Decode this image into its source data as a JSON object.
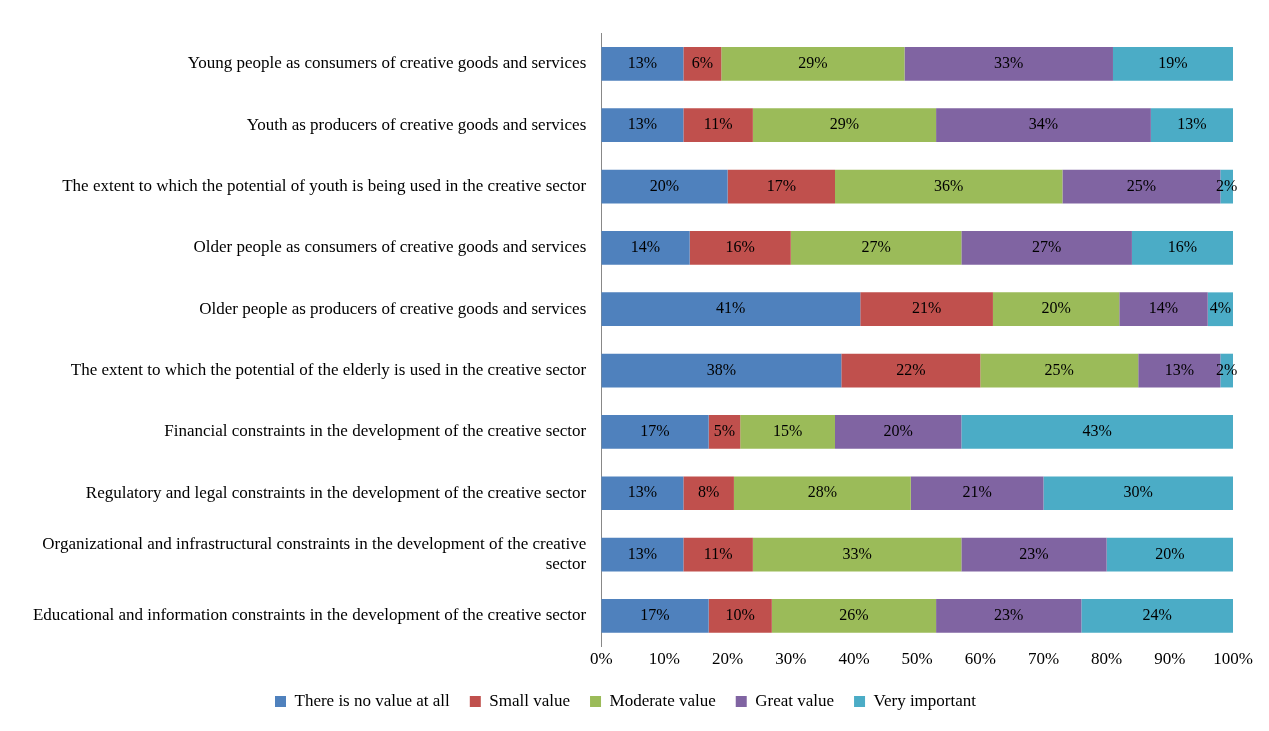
{
  "chart_data": {
    "type": "bar",
    "orientation": "horizontal",
    "stacked": true,
    "grid": false,
    "legend": "bottom",
    "categories": [
      "Young people as consumers of creative goods and services",
      "Youth as producers of creative goods and services",
      "The extent to which the potential of youth is being used in the creative sector",
      "Older people as consumers of creative goods and services",
      "Older people as producers of creative goods and services",
      "The extent to which the potential of the elderly is used in the creative sector",
      "Financial constraints in the development of the creative sector",
      "Regulatory and legal constraints in the development of the creative sector",
      "Organizational and infrastructural constraints in the development of the creative sector",
      "Educational and information constraints in the development of the creative sector"
    ],
    "xlim": [
      0,
      100
    ],
    "xticks": [
      {
        "value": 0,
        "label": "0%"
      },
      {
        "value": 10,
        "label": "10%"
      },
      {
        "value": 20,
        "label": "20%"
      },
      {
        "value": 30,
        "label": "30%"
      },
      {
        "value": 40,
        "label": "40%"
      },
      {
        "value": 50,
        "label": "50%"
      },
      {
        "value": 60,
        "label": "60%"
      },
      {
        "value": 70,
        "label": "70%"
      },
      {
        "value": 80,
        "label": "80%"
      },
      {
        "value": 90,
        "label": "90%"
      },
      {
        "value": 100,
        "label": "100%"
      }
    ],
    "series": [
      {
        "name": "There is no value at all",
        "color": "#4f81bd",
        "values": [
          13,
          13,
          20,
          14,
          41,
          38,
          17,
          13,
          13,
          17
        ],
        "value_labels": [
          "13%",
          "13%",
          "20%",
          "14%",
          "41%",
          "38%",
          "17%",
          "13%",
          "13%",
          "17%"
        ]
      },
      {
        "name": "Small value",
        "color": "#c0504d",
        "values": [
          6,
          11,
          17,
          16,
          21,
          22,
          5,
          8,
          11,
          10
        ],
        "value_labels": [
          "6%",
          "11%",
          "17%",
          "16%",
          "21%",
          "22%",
          "5%",
          "8%",
          "11%",
          "10%"
        ]
      },
      {
        "name": "Moderate value",
        "color": "#9bbb59",
        "values": [
          29,
          29,
          36,
          27,
          20,
          25,
          15,
          28,
          33,
          26
        ],
        "value_labels": [
          "29%",
          "29%",
          "36%",
          "27%",
          "20%",
          "25%",
          "15%",
          "28%",
          "33%",
          "26%"
        ]
      },
      {
        "name": "Great value",
        "color": "#8064a2",
        "values": [
          33,
          34,
          25,
          27,
          14,
          13,
          20,
          21,
          23,
          23
        ],
        "value_labels": [
          "33%",
          "34%",
          "25%",
          "27%",
          "14%",
          "13%",
          "20%",
          "21%",
          "23%",
          "23%"
        ]
      },
      {
        "name": "Very important",
        "color": "#4bacc6",
        "values": [
          19,
          13,
          2,
          16,
          4,
          2,
          43,
          30,
          20,
          24
        ],
        "value_labels": [
          "19%",
          "13%",
          "2%",
          "16%",
          "4%",
          "2%",
          "43%",
          "30%",
          "20%",
          "24%"
        ]
      }
    ]
  }
}
